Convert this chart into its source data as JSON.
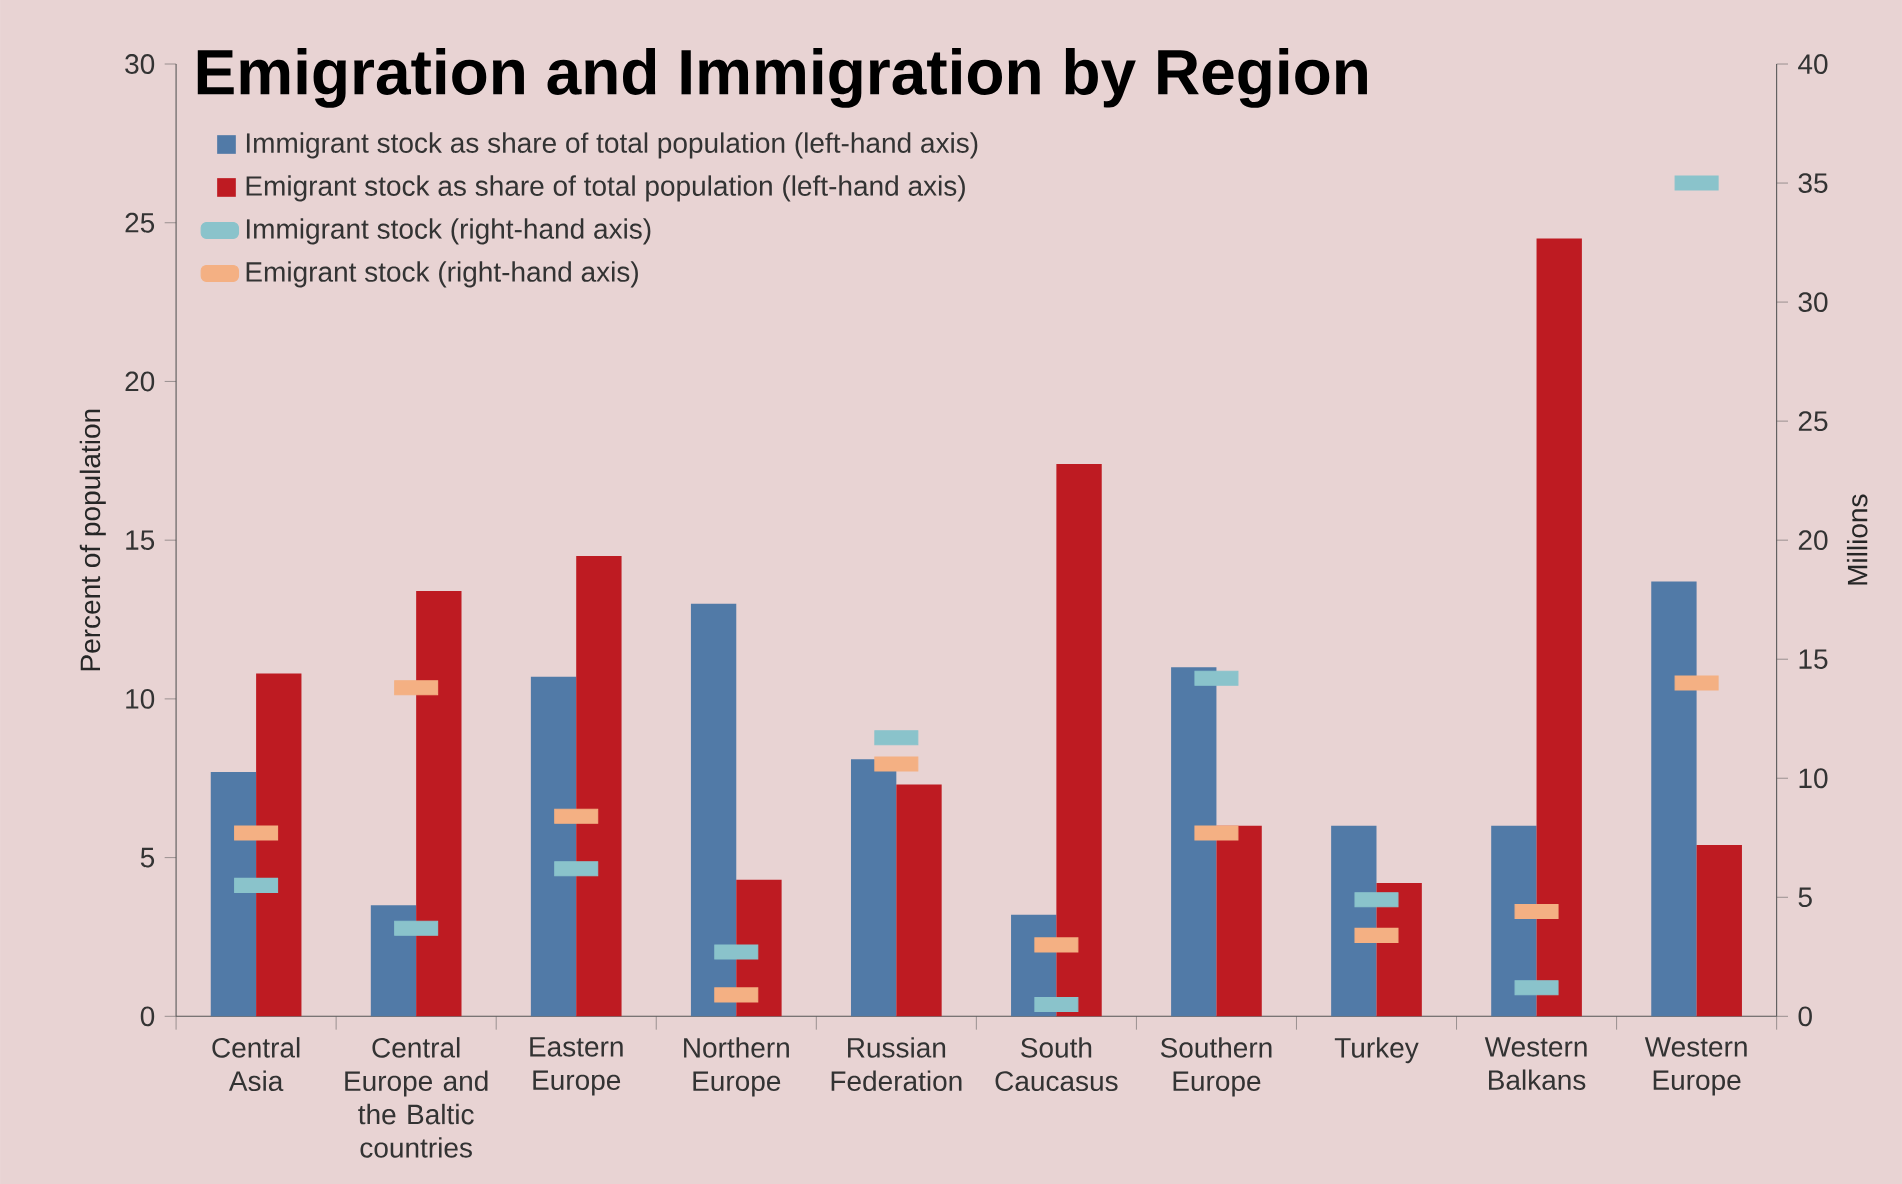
{
  "chart_data": {
    "type": "bar",
    "title": "Emigration and Immigration by Region",
    "ylabel": "Percent of population",
    "y2label": "Millions",
    "categories": [
      "Central Asia",
      "Central Europe and the Baltic countries",
      "Eastern Europe",
      "Northern Europe",
      "Russian Federation",
      "South Caucasus",
      "Southern Europe",
      "Turkey",
      "Western Balkans",
      "Western Europe"
    ],
    "series": [
      {
        "name": "Immigrant stock as share of total population (left-hand axis)",
        "color": "#517aa7",
        "values": [
          7.7,
          3.5,
          10.7,
          13.0,
          8.1,
          3.2,
          11.0,
          6.0,
          6.0,
          13.7
        ]
      },
      {
        "name": "Emigrant stock as share of total population (left-hand axis)",
        "color": "#be1b22",
        "values": [
          10.8,
          13.4,
          14.5,
          4.3,
          7.3,
          17.4,
          6.0,
          4.2,
          24.5,
          5.4
        ]
      },
      {
        "name": "Immigrant stock (right-hand axis)",
        "type": "scatter",
        "axis": "y2",
        "marker": "square",
        "color": "#8ac3cb",
        "values": [
          5.5,
          3.7,
          6.2,
          2.7,
          11.7,
          0.5,
          14.2,
          4.9,
          1.2,
          35.0
        ]
      },
      {
        "name": "Emigrant stock (right-hand axis)",
        "type": "scatter",
        "axis": "y2",
        "marker": "square",
        "color": "#f4b083",
        "values": [
          7.7,
          13.8,
          8.4,
          0.9,
          10.6,
          3.0,
          7.7,
          3.4,
          4.4,
          14.0
        ]
      }
    ],
    "ylim": [
      0,
      30
    ],
    "yticks": [
      0,
      5,
      10,
      15,
      20,
      25,
      30
    ],
    "y2lim": [
      0,
      40
    ],
    "y2ticks": [
      0,
      5,
      10,
      15,
      20,
      25,
      30,
      35,
      40
    ],
    "legend": "top left",
    "grid": false
  }
}
